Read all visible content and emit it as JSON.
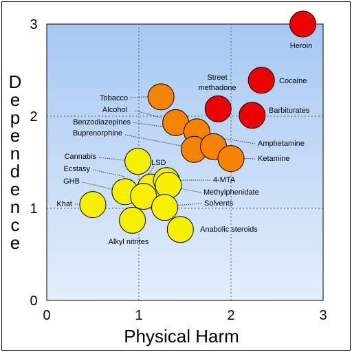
{
  "chart_data": {
    "type": "scatter",
    "xlabel": "Physical Harm",
    "ylabel": "Dependence",
    "xlim": [
      0,
      3
    ],
    "ylim": [
      0,
      3
    ],
    "x_ticks": [
      "0",
      "1",
      "2",
      "3"
    ],
    "y_ticks": [
      "0",
      "1",
      "2",
      "3"
    ],
    "grid": "dotted at 1 and 2",
    "colors": {
      "red": "#ee0000",
      "orange": "#f58200",
      "yellow": "#f5f000",
      "bg_top": "#a6c8f2",
      "bg_bottom": "#e4eefb"
    },
    "points": [
      {
        "name": "Heroin",
        "x": 2.78,
        "y": 3.0,
        "color": "red"
      },
      {
        "name": "Cocaine",
        "x": 2.33,
        "y": 2.39,
        "color": "red"
      },
      {
        "name": "Street methadone",
        "x": 1.86,
        "y": 2.08,
        "color": "red"
      },
      {
        "name": "Barbiturates",
        "x": 2.23,
        "y": 2.01,
        "color": "red"
      },
      {
        "name": "Tobacco",
        "x": 1.24,
        "y": 2.21,
        "color": "orange"
      },
      {
        "name": "Alcohol",
        "x": 1.4,
        "y": 1.93,
        "color": "orange"
      },
      {
        "name": "Benzodiazepines",
        "x": 1.63,
        "y": 1.83,
        "color": "orange"
      },
      {
        "name": "Buprenorphine",
        "x": 1.6,
        "y": 1.64,
        "color": "orange"
      },
      {
        "name": "Amphetamine",
        "x": 1.81,
        "y": 1.67,
        "color": "orange"
      },
      {
        "name": "Ketamine",
        "x": 2.0,
        "y": 1.54,
        "color": "orange"
      },
      {
        "name": "Cannabis",
        "x": 0.99,
        "y": 1.51,
        "color": "yellow"
      },
      {
        "name": "LSD",
        "x": 1.13,
        "y": 1.23,
        "color": "yellow"
      },
      {
        "name": "4-MTA",
        "x": 1.3,
        "y": 1.3,
        "color": "yellow"
      },
      {
        "name": "Ecstasy",
        "x": 0.85,
        "y": 1.18,
        "color": "yellow"
      },
      {
        "name": "Methylphenidate",
        "x": 1.32,
        "y": 1.25,
        "color": "yellow"
      },
      {
        "name": "GHB",
        "x": 1.05,
        "y": 1.13,
        "color": "yellow"
      },
      {
        "name": "Solvents",
        "x": 1.28,
        "y": 1.01,
        "color": "yellow"
      },
      {
        "name": "Khat",
        "x": 0.5,
        "y": 1.04,
        "color": "yellow"
      },
      {
        "name": "Alkyl nitrites",
        "x": 0.93,
        "y": 0.87,
        "color": "yellow"
      },
      {
        "name": "Anabolic steroids",
        "x": 1.45,
        "y": 0.77,
        "color": "yellow"
      }
    ]
  }
}
